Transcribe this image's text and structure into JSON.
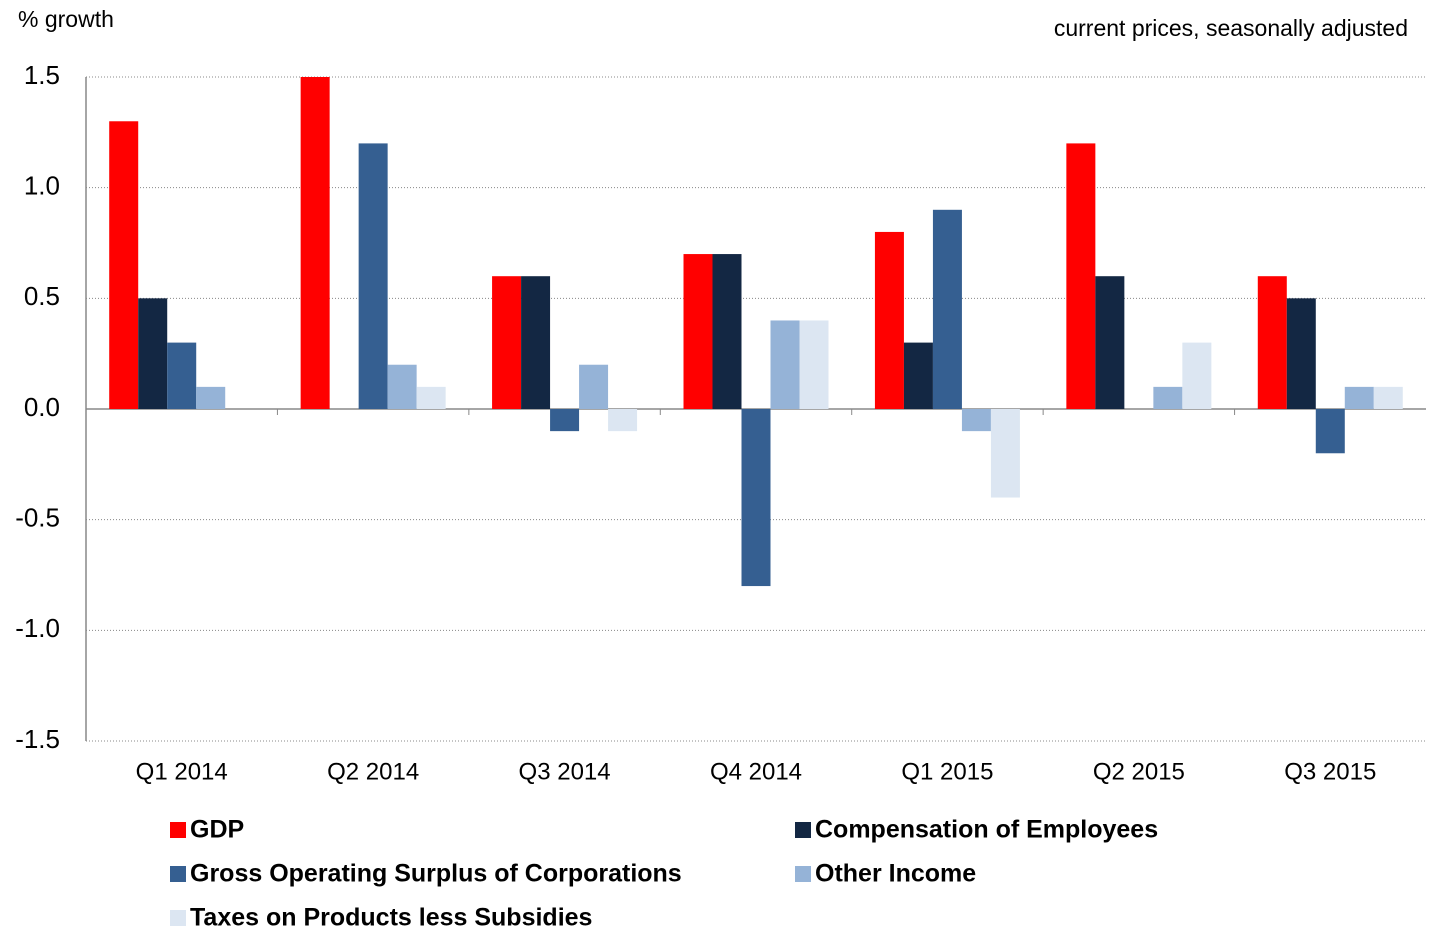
{
  "chart_data": {
    "type": "bar",
    "y_label": "% growth",
    "subtitle": "current prices, seasonally adjusted",
    "categories": [
      "Q1 2014",
      "Q2 2014",
      "Q3 2014",
      "Q4 2014",
      "Q1 2015",
      "Q2 2015",
      "Q3 2015"
    ],
    "series": [
      {
        "name": "GDP",
        "color": "#ff0000",
        "values": [
          1.3,
          1.5,
          0.6,
          0.7,
          0.8,
          1.2,
          0.6
        ]
      },
      {
        "name": "Compensation of Employees",
        "color": "#132743",
        "values": [
          0.5,
          0,
          0.6,
          0.7,
          0.3,
          0.6,
          0.5
        ]
      },
      {
        "name": "Gross Operating Surplus of Corporations",
        "color": "#355f91",
        "values": [
          0.3,
          1.2,
          -0.1,
          -0.8,
          0.9,
          0,
          -0.2
        ]
      },
      {
        "name": "Other Income",
        "color": "#95b3d7",
        "values": [
          0.1,
          0.2,
          0.2,
          0.4,
          -0.1,
          0.1,
          0.1
        ]
      },
      {
        "name": "Taxes on Products less Subsidies",
        "color": "#dce6f2",
        "values": [
          0,
          0.1,
          -0.1,
          0.4,
          -0.4,
          0.3,
          0.1
        ]
      }
    ],
    "ylim": [
      -1.5,
      1.5
    ],
    "yticks": [
      -1.5,
      {
        "value": -1,
        "label": "-1.0"
      },
      -0.5,
      {
        "value": 0,
        "label": "0.0"
      },
      0.5,
      {
        "value": 1,
        "label": "1.0"
      },
      1.5
    ],
    "grid": true
  }
}
